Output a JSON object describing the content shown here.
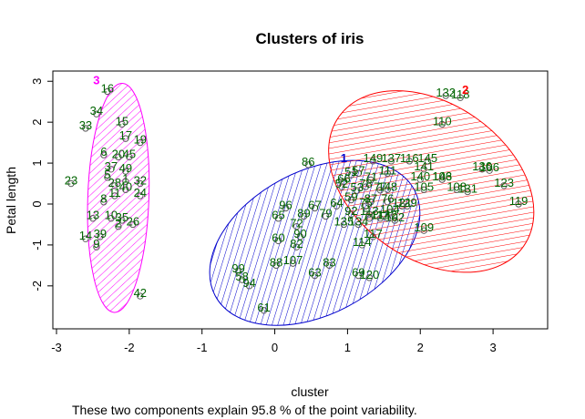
{
  "chart_data": {
    "type": "scatter",
    "title": "Clusters of iris",
    "xlabel": "cluster",
    "ylabel": "Petal length",
    "caption": "These two components explain 95.8 % of the point variability.",
    "xlim": [
      -3.05,
      3.75
    ],
    "ylim": [
      -3.05,
      3.25
    ],
    "xticks": [
      -3,
      -2,
      -1,
      0,
      1,
      2,
      3
    ],
    "yticks": [
      -2,
      -1,
      0,
      1,
      2,
      3
    ],
    "grid": false,
    "point_label_color": "#006400",
    "clusters": [
      {
        "label": "1",
        "color": "#0000CD",
        "center": [
          0.95,
          1.05
        ],
        "ellipse": {
          "cx": 0.55,
          "cy": -0.95,
          "rx": 1.55,
          "ry": 1.75,
          "rotate_deg": -28
        },
        "points": [
          {
            "x": 0.46,
            "y": 0.96,
            "t": "86"
          },
          {
            "x": 1.05,
            "y": 0.71,
            "t": "51"
          },
          {
            "x": 1.15,
            "y": 0.75,
            "t": "57"
          },
          {
            "x": 1.32,
            "y": 0.59,
            "t": "71"
          },
          {
            "x": 0.95,
            "y": 0.55,
            "t": "66"
          },
          {
            "x": 1.25,
            "y": 0.42,
            "t": "78"
          },
          {
            "x": 1.13,
            "y": 0.33,
            "t": "53"
          },
          {
            "x": 0.92,
            "y": 0.42,
            "t": "52"
          },
          {
            "x": 1.45,
            "y": 0.34,
            "t": "77"
          },
          {
            "x": 1.32,
            "y": 0.05,
            "t": "87"
          },
          {
            "x": 1.55,
            "y": 0.05,
            "t": "76"
          },
          {
            "x": 1.05,
            "y": 0.1,
            "t": "59"
          },
          {
            "x": 1.25,
            "y": -0.05,
            "t": "75"
          },
          {
            "x": 0.15,
            "y": -0.1,
            "t": "96"
          },
          {
            "x": 0.55,
            "y": -0.1,
            "t": "67"
          },
          {
            "x": 0.85,
            "y": -0.05,
            "t": "64"
          },
          {
            "x": 1.05,
            "y": -0.25,
            "t": "92"
          },
          {
            "x": 0.05,
            "y": -0.35,
            "t": "65"
          },
          {
            "x": 0.4,
            "y": -0.3,
            "t": "89"
          },
          {
            "x": 0.7,
            "y": -0.3,
            "t": "79"
          },
          {
            "x": 1.3,
            "y": -0.35,
            "t": "74"
          },
          {
            "x": 1.58,
            "y": -0.2,
            "t": "104"
          },
          {
            "x": 0.3,
            "y": -0.55,
            "t": "72"
          },
          {
            "x": 0.95,
            "y": -0.5,
            "t": "135"
          },
          {
            "x": 1.15,
            "y": -0.5,
            "t": "134"
          },
          {
            "x": 1.45,
            "y": -0.35,
            "t": "112"
          },
          {
            "x": 1.65,
            "y": -0.4,
            "t": "102"
          },
          {
            "x": 0.05,
            "y": -0.9,
            "t": "60"
          },
          {
            "x": 0.35,
            "y": -0.8,
            "t": "90"
          },
          {
            "x": 0.3,
            "y": -1.05,
            "t": "82"
          },
          {
            "x": 1.35,
            "y": -0.8,
            "t": "117"
          },
          {
            "x": 1.2,
            "y": -1.0,
            "t": "114"
          },
          {
            "x": -0.5,
            "y": -1.65,
            "t": "99"
          },
          {
            "x": -0.45,
            "y": -1.85,
            "t": "58"
          },
          {
            "x": -0.35,
            "y": -2.0,
            "t": "94"
          },
          {
            "x": 0.02,
            "y": -1.5,
            "t": "88"
          },
          {
            "x": 0.25,
            "y": -1.45,
            "t": "107"
          },
          {
            "x": 0.55,
            "y": -1.75,
            "t": "63"
          },
          {
            "x": 0.75,
            "y": -1.5,
            "t": "83"
          },
          {
            "x": 1.15,
            "y": -1.75,
            "t": "69"
          },
          {
            "x": 1.3,
            "y": -1.8,
            "t": "120"
          },
          {
            "x": -0.15,
            "y": -2.6,
            "t": "61"
          }
        ]
      },
      {
        "label": "2",
        "color": "#FF0000",
        "center": [
          2.62,
          2.72
        ],
        "ellipse": {
          "cx": 2.15,
          "cy": 0.55,
          "rx": 1.55,
          "ry": 1.9,
          "rotate_deg": 35
        },
        "points": [
          {
            "x": 2.35,
            "y": 2.65,
            "t": "132"
          },
          {
            "x": 2.55,
            "y": 2.6,
            "t": "118"
          },
          {
            "x": 2.3,
            "y": 1.95,
            "t": "110"
          },
          {
            "x": 1.35,
            "y": 1.05,
            "t": "149"
          },
          {
            "x": 1.6,
            "y": 1.05,
            "t": "137"
          },
          {
            "x": 1.85,
            "y": 1.05,
            "t": "116"
          },
          {
            "x": 2.1,
            "y": 1.05,
            "t": "145"
          },
          {
            "x": 2.05,
            "y": 0.85,
            "t": "141"
          },
          {
            "x": 1.55,
            "y": 0.75,
            "t": "111"
          },
          {
            "x": 2.0,
            "y": 0.6,
            "t": "140"
          },
          {
            "x": 2.3,
            "y": 0.6,
            "t": "146"
          },
          {
            "x": 2.85,
            "y": 0.85,
            "t": "136"
          },
          {
            "x": 2.95,
            "y": 0.82,
            "t": "106"
          },
          {
            "x": 2.3,
            "y": 0.6,
            "t": "103"
          },
          {
            "x": 1.55,
            "y": 0.35,
            "t": "148"
          },
          {
            "x": 2.05,
            "y": 0.35,
            "t": "105"
          },
          {
            "x": 2.5,
            "y": 0.35,
            "t": "108"
          },
          {
            "x": 2.65,
            "y": 0.3,
            "t": "131"
          },
          {
            "x": 3.15,
            "y": 0.45,
            "t": "123"
          },
          {
            "x": 1.82,
            "y": -0.05,
            "t": "129"
          },
          {
            "x": 1.55,
            "y": -0.35,
            "t": "142"
          },
          {
            "x": 1.3,
            "y": -0.25,
            "t": "113"
          },
          {
            "x": 2.05,
            "y": -0.65,
            "t": "109"
          },
          {
            "x": 3.35,
            "y": 0.0,
            "t": "119"
          },
          {
            "x": 1.75,
            "y": -0.05,
            "t": "121"
          }
        ]
      },
      {
        "label": "3",
        "color": "#FF00FF",
        "center": [
          -2.45,
          2.95
        ],
        "ellipse": {
          "cx": -2.15,
          "cy": 0.15,
          "rx": 0.42,
          "ry": 2.8,
          "rotate_deg": 2
        },
        "points": [
          {
            "x": -2.3,
            "y": 2.75,
            "t": "16"
          },
          {
            "x": -2.45,
            "y": 2.2,
            "t": "34"
          },
          {
            "x": -2.6,
            "y": 1.85,
            "t": "33"
          },
          {
            "x": -2.1,
            "y": 1.95,
            "t": "15"
          },
          {
            "x": -2.05,
            "y": 1.6,
            "t": "17"
          },
          {
            "x": -1.85,
            "y": 1.5,
            "t": "19"
          },
          {
            "x": -2.35,
            "y": 1.2,
            "t": "6"
          },
          {
            "x": -2.15,
            "y": 1.15,
            "t": "20"
          },
          {
            "x": -2.0,
            "y": 1.15,
            "t": "45"
          },
          {
            "x": -2.25,
            "y": 0.85,
            "t": "37"
          },
          {
            "x": -2.05,
            "y": 0.8,
            "t": "49"
          },
          {
            "x": -2.3,
            "y": 0.65,
            "t": "5"
          },
          {
            "x": -2.05,
            "y": 0.55,
            "t": "1"
          },
          {
            "x": -1.85,
            "y": 0.5,
            "t": "32"
          },
          {
            "x": -2.2,
            "y": 0.45,
            "t": "28"
          },
          {
            "x": -2.05,
            "y": 0.35,
            "t": "40"
          },
          {
            "x": -2.2,
            "y": 0.2,
            "t": "11"
          },
          {
            "x": -2.35,
            "y": 0.05,
            "t": "8"
          },
          {
            "x": -1.85,
            "y": 0.2,
            "t": "24"
          },
          {
            "x": -2.8,
            "y": 0.5,
            "t": "23"
          },
          {
            "x": -2.5,
            "y": -0.35,
            "t": "13"
          },
          {
            "x": -2.25,
            "y": -0.35,
            "t": "10"
          },
          {
            "x": -2.1,
            "y": -0.4,
            "t": "35"
          },
          {
            "x": -2.15,
            "y": -0.55,
            "t": "2"
          },
          {
            "x": -1.95,
            "y": -0.5,
            "t": "26"
          },
          {
            "x": -2.6,
            "y": -0.85,
            "t": "14"
          },
          {
            "x": -2.4,
            "y": -0.8,
            "t": "39"
          },
          {
            "x": -2.45,
            "y": -1.05,
            "t": "9"
          },
          {
            "x": -1.85,
            "y": -2.25,
            "t": "42"
          }
        ]
      }
    ]
  }
}
